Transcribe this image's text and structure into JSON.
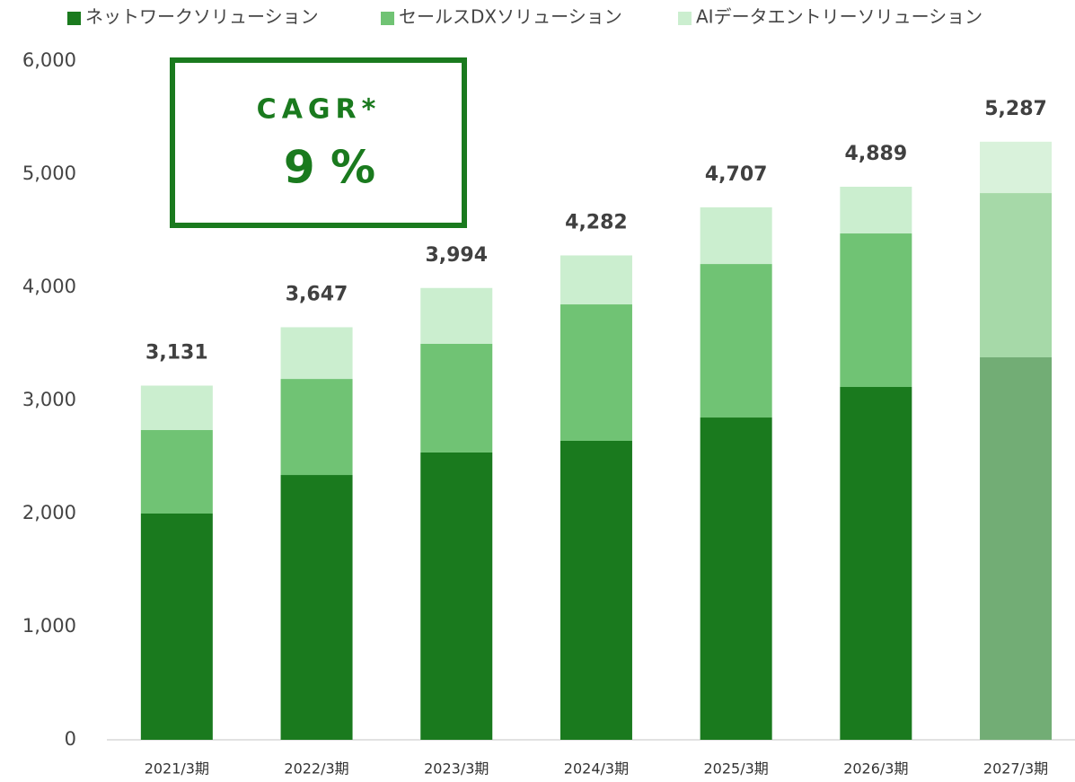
{
  "chart_data": {
    "type": "stacked_bar",
    "categories": [
      "2021/3期",
      "2022/3期",
      "2023/3期",
      "2024/3期",
      "2025/3期",
      "2026/3期",
      "2027/3期"
    ],
    "series": [
      {
        "name": "ネットワークソリューション",
        "color": "#1a7a1e",
        "colors": [
          "#1a7a1e",
          "#1a7a1e",
          "#1a7a1e",
          "#1a7a1e",
          "#1a7a1e",
          "#1a7a1e",
          "#72ad75"
        ],
        "values": [
          2000,
          2341,
          2540,
          2643,
          2849,
          3119,
          3381
        ]
      },
      {
        "name": "セールスDXソリューション",
        "color": "#70c374",
        "colors": [
          "#70c374",
          "#70c374",
          "#70c374",
          "#70c374",
          "#70c374",
          "#70c374",
          "#a6d9a8"
        ],
        "values": [
          738,
          849,
          960,
          1206,
          1357,
          1357,
          1452
        ]
      },
      {
        "name": "AIデータエントリーソリューション",
        "color": "#cbeecf",
        "colors": [
          "#cbeecf",
          "#cbeecf",
          "#cbeecf",
          "#cbeecf",
          "#cbeecf",
          "#cbeecf",
          "#d9f2db"
        ],
        "values": [
          393,
          457,
          494,
          433,
          501,
          413,
          454
        ]
      }
    ],
    "totals": [
      3131,
      3647,
      3994,
      4282,
      4707,
      4889,
      5287
    ],
    "total_labels": [
      "3,131",
      "3,647",
      "3,994",
      "4,282",
      "4,707",
      "4,889",
      "5,287"
    ],
    "ylim": [
      0,
      6000
    ],
    "yticks": [
      0,
      {
        "value": 1000,
        "label": "1,000"
      },
      {
        "value": 2000,
        "label": "2,000"
      },
      {
        "value": 3000,
        "label": "3,000"
      },
      {
        "value": 4000,
        "label": "4,000"
      },
      {
        "value": 5000,
        "label": "5,000"
      },
      {
        "value": 6000,
        "label": "6,000"
      }
    ],
    "annotation": {
      "title": "CAGR*",
      "value": "9 %"
    },
    "legend": "top"
  }
}
